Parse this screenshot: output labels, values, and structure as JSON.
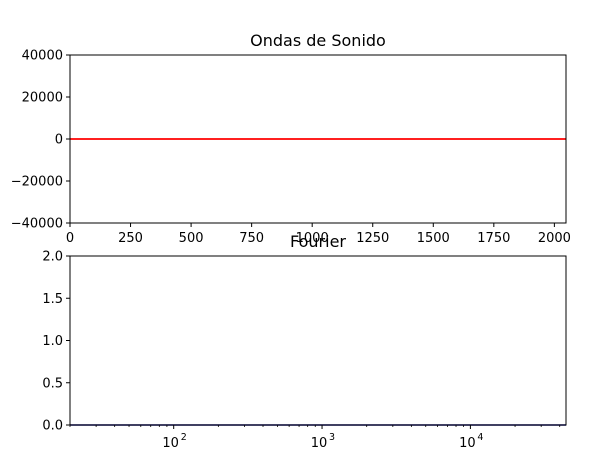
{
  "chart_data": [
    {
      "type": "line",
      "title": "Ondas de Sonido",
      "xlabel": "",
      "ylabel": "",
      "xlim": [
        0,
        2048
      ],
      "ylim": [
        -40000,
        40000
      ],
      "xscale": "linear",
      "grid": false,
      "x_ticks": [
        0,
        250,
        500,
        750,
        1000,
        1250,
        1500,
        1750,
        2000
      ],
      "x_tick_labels": [
        "0",
        "250",
        "500",
        "750",
        "1000",
        "1250",
        "1500",
        "1750",
        "2000"
      ],
      "y_ticks": [
        40000,
        20000,
        0,
        -20000,
        -40000
      ],
      "y_tick_labels": [
        "40000",
        "20000",
        "0",
        "−20000",
        "−40000"
      ],
      "series": [
        {
          "color": "#ff0000",
          "x": [
            0,
            2048
          ],
          "y": [
            0,
            0
          ]
        }
      ]
    },
    {
      "type": "line",
      "title": "Fourier",
      "xlabel": "",
      "ylabel": "",
      "xlim": [
        20,
        44100
      ],
      "ylim": [
        0,
        2
      ],
      "xscale": "log",
      "grid": false,
      "x_ticks": [
        100,
        1000,
        10000
      ],
      "x_tick_labels": [
        {
          "base": "10",
          "exp": "2"
        },
        {
          "base": "10",
          "exp": "3"
        },
        {
          "base": "10",
          "exp": "4"
        }
      ],
      "y_ticks": [
        2.0,
        1.5,
        1.0,
        0.5,
        0.0
      ],
      "y_tick_labels": [
        "2.0",
        "1.5",
        "1.0",
        "0.5",
        "0.0"
      ],
      "series": [
        {
          "color": "#00008b",
          "x": [
            20,
            44100
          ],
          "y": [
            0,
            0
          ]
        }
      ]
    }
  ]
}
